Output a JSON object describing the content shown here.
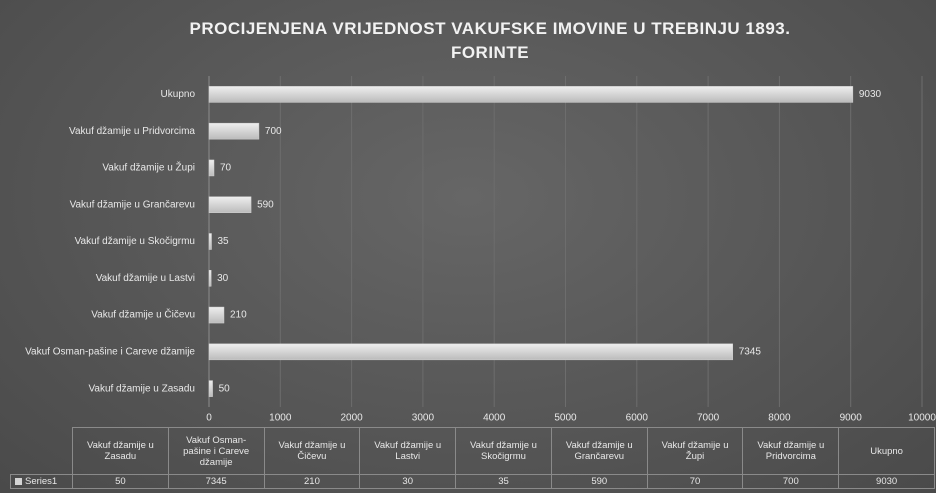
{
  "chart_data": {
    "type": "barh",
    "title": "PROCIJENJENA VRIJEDNOST VAKUFSKE IMOVINE U TREBINJU 1893. FORINTE",
    "categories": [
      "Vakuf džamije u Zasadu",
      "Vakuf Osman-pašine i Careve džamije",
      "Vakuf džamije u Čičevu",
      "Vakuf džamije u Lastvi",
      "Vakuf džamije u Skočigrmu",
      "Vakuf džamije u Grančarevu",
      "Vakuf džamije u Župi",
      "Vakuf džamije u Pridvorcima",
      "Ukupno"
    ],
    "series": [
      {
        "name": "Series1",
        "color": "#d4d4d4",
        "values": [
          50,
          7345,
          210,
          30,
          35,
          590,
          70,
          700,
          9030
        ]
      }
    ],
    "xlim": [
      0,
      10000
    ],
    "xticks": [
      0,
      1000,
      2000,
      3000,
      4000,
      5000,
      6000,
      7000,
      8000,
      9000,
      10000
    ],
    "grid": true,
    "data_table": true
  }
}
